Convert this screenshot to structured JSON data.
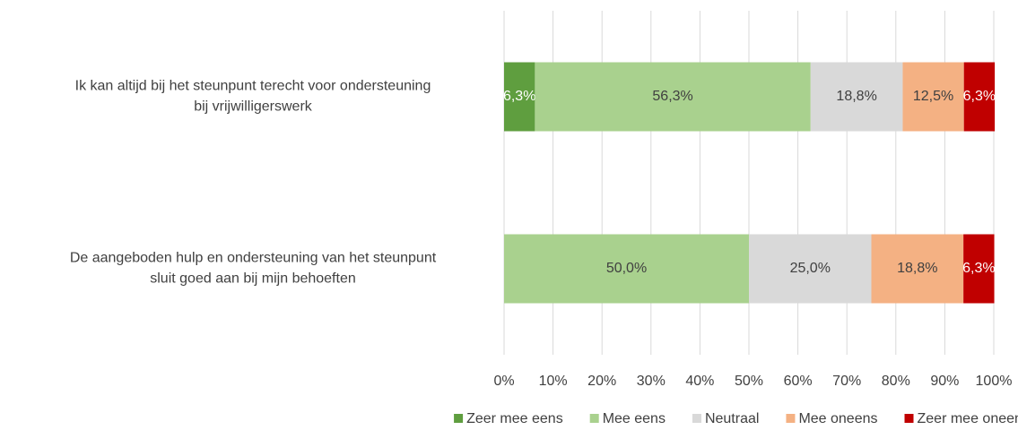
{
  "chart_data": {
    "type": "stacked-barh",
    "categories": [
      [
        "Ik kan altijd bij het  steunpunt terecht voor ondersteuning",
        "bij vrijwilligerswerk"
      ],
      [
        "De aangeboden hulp en ondersteuning van het steunpunt",
        "sluit goed aan bij mijn behoeften"
      ]
    ],
    "series": [
      {
        "name": "Zeer mee eens",
        "color": "#5f9e3f",
        "values": [
          6.3,
          0
        ],
        "value_labels": [
          "6,3%",
          null
        ]
      },
      {
        "name": "Mee eens",
        "color": "#a9d18e",
        "values": [
          56.3,
          50.0
        ],
        "value_labels": [
          "56,3%",
          "50,0%"
        ]
      },
      {
        "name": "Neutraal",
        "color": "#d9d9d9",
        "values": [
          18.8,
          25.0
        ],
        "value_labels": [
          "18,8%",
          "25,0%"
        ]
      },
      {
        "name": "Mee oneens",
        "color": "#f4b183",
        "values": [
          12.5,
          18.8
        ],
        "value_labels": [
          "12,5%",
          "18,8%"
        ]
      },
      {
        "name": "Zeer mee oneens",
        "color": "#c00000",
        "values": [
          6.3,
          6.3
        ],
        "value_labels": [
          "6,3%",
          "6,3%"
        ]
      }
    ],
    "xlim": [
      0,
      100
    ],
    "xticks": [
      {
        "value": 0,
        "label": "0%"
      },
      {
        "value": 10,
        "label": "10%"
      },
      {
        "value": 20,
        "label": "20%"
      },
      {
        "value": 30,
        "label": "30%"
      },
      {
        "value": 40,
        "label": "40%"
      },
      {
        "value": 50,
        "label": "50%"
      },
      {
        "value": 60,
        "label": "60%"
      },
      {
        "value": 70,
        "label": "70%"
      },
      {
        "value": 80,
        "label": "80%"
      },
      {
        "value": 90,
        "label": "90%"
      },
      {
        "value": 100,
        "label": "100%"
      }
    ],
    "grid": true,
    "legend": "bottom"
  }
}
